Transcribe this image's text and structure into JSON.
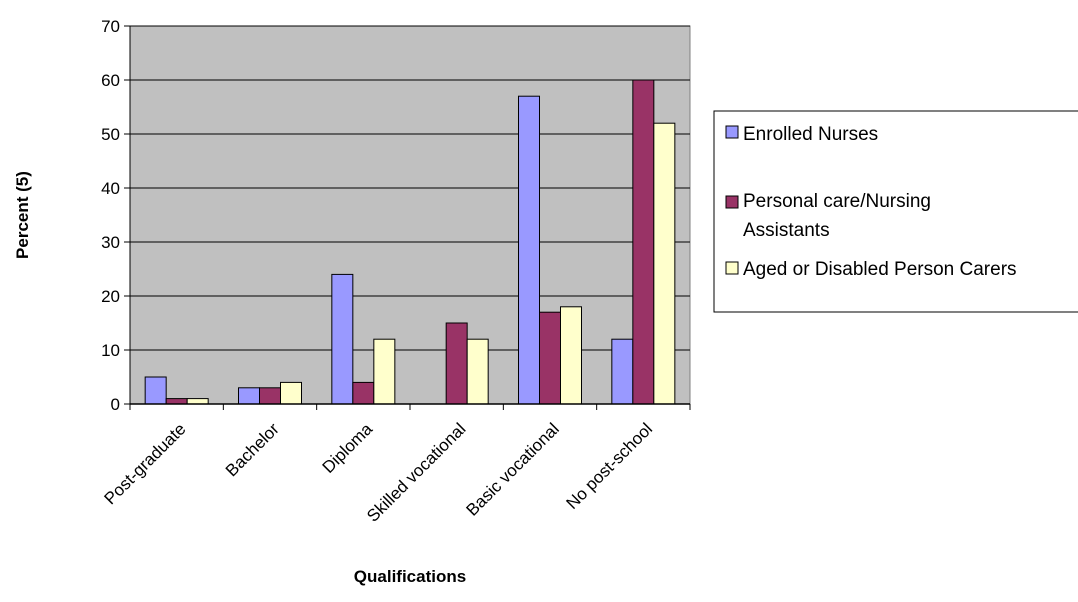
{
  "chart_data": {
    "type": "bar",
    "title": "",
    "xlabel": "Qualifications",
    "ylabel": "Percent (5)",
    "ylim": [
      0,
      70
    ],
    "yticks": [
      0,
      10,
      20,
      30,
      40,
      50,
      60,
      70
    ],
    "grid": true,
    "legend_position": "right",
    "categories": [
      "Post-graduate",
      "Bachelor",
      "Diploma",
      "Skilled vocational",
      "Basic vocational",
      "No post-school"
    ],
    "series": [
      {
        "name": "Enrolled Nurses",
        "color": "#9999ff",
        "values": [
          5,
          3,
          24,
          0,
          57,
          12
        ]
      },
      {
        "name": "Personal care/Nursing Assistants",
        "color": "#993366",
        "values": [
          1,
          3,
          4,
          15,
          17,
          60
        ]
      },
      {
        "name": "Aged or Disabled Person Carers",
        "color": "#ffffcc",
        "values": [
          1,
          4,
          12,
          12,
          18,
          52
        ]
      }
    ],
    "plot_background": "#c0c0c0"
  }
}
